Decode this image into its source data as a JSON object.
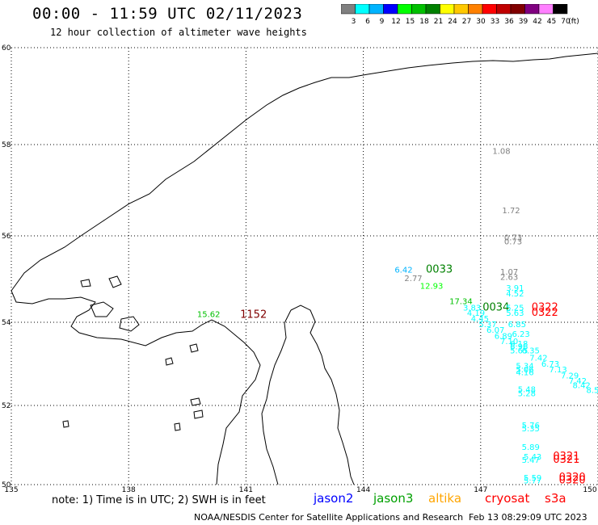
{
  "header": {
    "title": "00:00 - 11:59 UTC 02/11/2023",
    "subtitle": "12 hour collection of altimeter wave heights"
  },
  "colorbar": {
    "unit": "(ft)",
    "ticks": [
      "3",
      "6",
      "9",
      "12",
      "15",
      "18",
      "21",
      "24",
      "27",
      "30",
      "33",
      "36",
      "39",
      "42",
      "45",
      "70"
    ],
    "colors": [
      "#808080",
      "#00ffff",
      "#00b4ff",
      "#0000ff",
      "#00ff00",
      "#00c000",
      "#008000",
      "#ffff00",
      "#ffc800",
      "#ff8000",
      "#ff0000",
      "#c00000",
      "#800000",
      "#800080",
      "#ff80ff",
      "#000000"
    ]
  },
  "map": {
    "lon_range": [
      135,
      150
    ],
    "lat_range": [
      50,
      60
    ],
    "lon_ticks": [
      "135",
      "138",
      "141",
      "144",
      "147",
      "150"
    ],
    "lat_ticks": [
      "60",
      "58",
      "56",
      "54",
      "52",
      "50"
    ],
    "gridlines": "dotted"
  },
  "observations": [
    {
      "text": "1.08",
      "color": "#808080",
      "lon": 147.3,
      "lat": 57.8
    },
    {
      "text": "1.72",
      "color": "#808080",
      "lon": 147.55,
      "lat": 56.5
    },
    {
      "text": "0.73",
      "color": "#808080",
      "lon": 147.6,
      "lat": 55.9
    },
    {
      "text": "0.73",
      "color": "#808080",
      "lon": 147.6,
      "lat": 55.8
    },
    {
      "text": "1.07",
      "color": "#808080",
      "lon": 147.5,
      "lat": 55.1
    },
    {
      "text": "2.63",
      "color": "#808080",
      "lon": 147.5,
      "lat": 54.98
    },
    {
      "text": "2.77",
      "color": "#808080",
      "lon": 145.05,
      "lat": 54.95
    },
    {
      "text": "6.42",
      "color": "#00b4ff",
      "lon": 144.8,
      "lat": 55.15
    },
    {
      "text": "0033",
      "color": "#008000",
      "lon": 145.6,
      "lat": 55.15,
      "big": true
    },
    {
      "text": "12.93",
      "color": "#00ff00",
      "lon": 145.45,
      "lat": 54.78
    },
    {
      "text": "17.34",
      "color": "#00c000",
      "lon": 146.2,
      "lat": 54.42
    },
    {
      "text": "15.62",
      "color": "#00c000",
      "lon": 139.75,
      "lat": 54.12
    },
    {
      "text": "1152",
      "color": "#800000",
      "lon": 140.85,
      "lat": 54.1,
      "big": true
    },
    {
      "text": "3.91",
      "color": "#00ffff",
      "lon": 147.65,
      "lat": 54.73
    },
    {
      "text": "4.52",
      "color": "#00ffff",
      "lon": 147.65,
      "lat": 54.6
    },
    {
      "text": "3.83",
      "color": "#00ffff",
      "lon": 146.55,
      "lat": 54.27
    },
    {
      "text": "0034",
      "color": "#008000",
      "lon": 147.05,
      "lat": 54.27,
      "big": true
    },
    {
      "text": "5.25",
      "color": "#00ffff",
      "lon": 147.65,
      "lat": 54.27
    },
    {
      "text": "0322",
      "color": "#ff0000",
      "lon": 148.3,
      "lat": 54.27,
      "big": true
    },
    {
      "text": "4.19",
      "color": "#00ffff",
      "lon": 146.65,
      "lat": 54.15
    },
    {
      "text": "5.63",
      "color": "#00ffff",
      "lon": 147.65,
      "lat": 54.15
    },
    {
      "text": "0322",
      "color": "#ff0000",
      "lon": 148.3,
      "lat": 54.15,
      "big": true
    },
    {
      "text": "4.45",
      "color": "#00ffff",
      "lon": 146.75,
      "lat": 54.02
    },
    {
      "text": "5.37",
      "color": "#00ffff",
      "lon": 146.95,
      "lat": 53.88
    },
    {
      "text": "6.85",
      "color": "#00ffff",
      "lon": 147.7,
      "lat": 53.88
    },
    {
      "text": "6.07",
      "color": "#00ffff",
      "lon": 147.15,
      "lat": 53.75
    },
    {
      "text": "6.23",
      "color": "#00ffff",
      "lon": 147.8,
      "lat": 53.65
    },
    {
      "text": "6.89",
      "color": "#00ffff",
      "lon": 147.35,
      "lat": 53.6
    },
    {
      "text": "7.10",
      "color": "#00ffff",
      "lon": 147.5,
      "lat": 53.48
    },
    {
      "text": "6.18",
      "color": "#00ffff",
      "lon": 147.75,
      "lat": 53.42
    },
    {
      "text": "6.96",
      "color": "#00ffff",
      "lon": 147.75,
      "lat": 53.35
    },
    {
      "text": "5.65",
      "color": "#00ffff",
      "lon": 147.75,
      "lat": 53.25
    },
    {
      "text": "6.35",
      "color": "#00ffff",
      "lon": 148.05,
      "lat": 53.25
    },
    {
      "text": "7.42",
      "color": "#00ffff",
      "lon": 148.25,
      "lat": 53.08
    },
    {
      "text": "6.73",
      "color": "#00ffff",
      "lon": 148.55,
      "lat": 52.93
    },
    {
      "text": "5.34",
      "color": "#00ffff",
      "lon": 147.9,
      "lat": 52.88
    },
    {
      "text": "5.06",
      "color": "#00ffff",
      "lon": 147.9,
      "lat": 52.8
    },
    {
      "text": "4.16",
      "color": "#00ffff",
      "lon": 147.9,
      "lat": 52.73
    },
    {
      "text": "7.13",
      "color": "#00ffff",
      "lon": 148.75,
      "lat": 52.8
    },
    {
      "text": "7.29",
      "color": "#00ffff",
      "lon": 149.05,
      "lat": 52.65
    },
    {
      "text": "7.42",
      "color": "#00ffff",
      "lon": 149.25,
      "lat": 52.52
    },
    {
      "text": "8.42",
      "color": "#00ffff",
      "lon": 149.35,
      "lat": 52.42
    },
    {
      "text": "8.52",
      "color": "#00ffff",
      "lon": 149.7,
      "lat": 52.3
    },
    {
      "text": "5.48",
      "color": "#00ffff",
      "lon": 147.95,
      "lat": 52.32
    },
    {
      "text": "5.28",
      "color": "#00ffff",
      "lon": 147.95,
      "lat": 52.22
    },
    {
      "text": "9.24",
      "color": "#00ffff",
      "lon": 150.0,
      "lat": 52.15
    },
    {
      "text": "9.1",
      "color": "#00ffff",
      "lon": 150.15,
      "lat": 52.0
    },
    {
      "text": "5.76",
      "color": "#00ffff",
      "lon": 148.05,
      "lat": 51.43
    },
    {
      "text": "5.35",
      "color": "#00ffff",
      "lon": 148.05,
      "lat": 51.35
    },
    {
      "text": "5.89",
      "color": "#00ffff",
      "lon": 148.05,
      "lat": 50.88
    },
    {
      "text": "5.43",
      "color": "#00ffff",
      "lon": 148.1,
      "lat": 50.63
    },
    {
      "text": "5.47",
      "color": "#00ffff",
      "lon": 148.05,
      "lat": 50.55
    },
    {
      "text": "0321",
      "color": "#ff0000",
      "lon": 148.85,
      "lat": 50.63,
      "big": true
    },
    {
      "text": "0321",
      "color": "#ff0000",
      "lon": 148.85,
      "lat": 50.55,
      "big": true
    },
    {
      "text": "5.59",
      "color": "#00ffff",
      "lon": 148.1,
      "lat": 50.1
    },
    {
      "text": "5.77",
      "color": "#00ffff",
      "lon": 148.1,
      "lat": 50.03
    },
    {
      "text": "0320",
      "color": "#ff0000",
      "lon": 149.0,
      "lat": 50.1,
      "big": true
    },
    {
      "text": "0320",
      "color": "#ff0000",
      "lon": 149.0,
      "lat": 50.03,
      "big": true
    }
  ],
  "legend": {
    "note": "note: 1) Time is in UTC; 2) SWH is in feet",
    "satellites": [
      {
        "name": "jason2",
        "color": "#0000ff"
      },
      {
        "name": "jason3",
        "color": "#00a000"
      },
      {
        "name": "altika",
        "color": "#ffa500"
      },
      {
        "name": "cryosat",
        "color": "#ff0000"
      },
      {
        "name": "s3a",
        "color": "#ff0000"
      }
    ]
  },
  "footer": {
    "source": "NOAA/NESDIS Center for Satellite Applications and Research",
    "generated": "Feb 13 08:29:09 UTC 2023"
  }
}
